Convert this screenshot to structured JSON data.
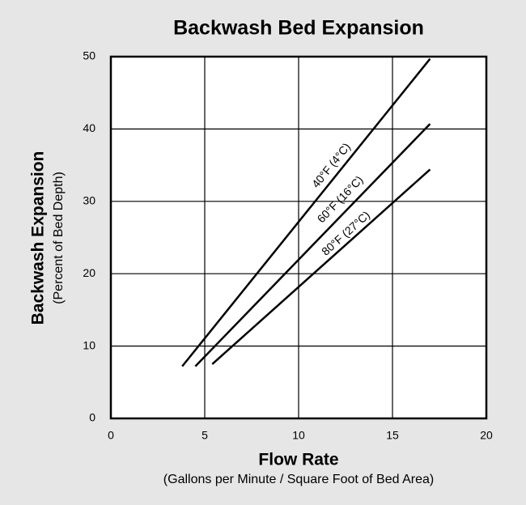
{
  "chart_data": {
    "type": "line",
    "title": "Backwash Bed Expansion",
    "x_label": "Flow Rate",
    "x_sublabel": "(Gallons per Minute / Square Foot of Bed Area)",
    "y_label": "Backwash Expansion",
    "y_sublabel": "(Percent of Bed Depth)",
    "series": [
      {
        "name": "40°F (4°C)",
        "color": "#000000",
        "x": [
          3.8,
          17.0
        ],
        "values": [
          7.2,
          49.7
        ]
      },
      {
        "name": "60°F (16°C)",
        "color": "#000000",
        "x": [
          4.5,
          17.0
        ],
        "values": [
          7.2,
          40.7
        ]
      },
      {
        "name": "80°F (27°C)",
        "color": "#000000",
        "x": [
          5.4,
          17.0
        ],
        "values": [
          7.5,
          34.4
        ]
      }
    ],
    "xlim": [
      0,
      20
    ],
    "xticks": [
      0,
      5,
      10,
      15,
      20
    ],
    "ylim": [
      0,
      50
    ],
    "yticks": [
      0,
      10,
      20,
      30,
      40,
      50
    ],
    "grid": true
  }
}
